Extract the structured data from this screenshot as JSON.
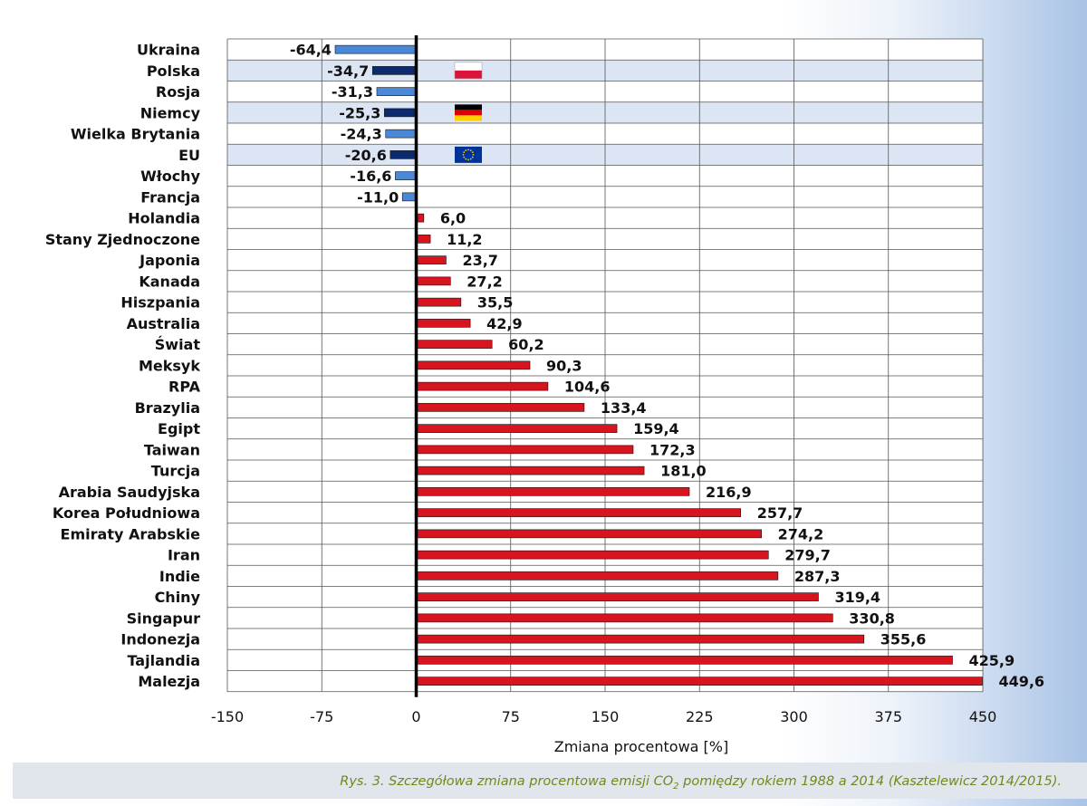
{
  "chart_data": {
    "type": "bar",
    "orientation": "horizontal",
    "categories": [
      "Ukraina",
      "Polska",
      "Rosja",
      "Niemcy",
      "Wielka Brytania",
      "EU",
      "Włochy",
      "Francja",
      "Holandia",
      "Stany Zjednoczone",
      "Japonia",
      "Kanada",
      "Hiszpania",
      "Australia",
      "Świat",
      "Meksyk",
      "RPA",
      "Brazylia",
      "Egipt",
      "Taiwan",
      "Turcja",
      "Arabia Saudyjska",
      "Korea Południowa",
      "Emiraty Arabskie",
      "Iran",
      "Indie",
      "Chiny",
      "Singapur",
      "Indonezja",
      "Tajlandia",
      "Malezja"
    ],
    "values": [
      -64.4,
      -34.7,
      -31.3,
      -25.3,
      -24.3,
      -20.6,
      -16.6,
      -11.0,
      6.0,
      11.2,
      23.7,
      27.2,
      35.5,
      42.9,
      60.2,
      90.3,
      104.6,
      133.4,
      159.4,
      172.3,
      181.0,
      216.9,
      257.7,
      274.2,
      279.7,
      287.3,
      319.4,
      330.8,
      355.6,
      425.9,
      449.6
    ],
    "value_labels": [
      "-64,4",
      "-34,7",
      "-31,3",
      "-25,3",
      "-24,3",
      "-20,6",
      "-16,6",
      "-11,0",
      "6,0",
      "11,2",
      "23,7",
      "27,2",
      "35,5",
      "42,9",
      "60,2",
      "90,3",
      "104,6",
      "133,4",
      "159,4",
      "172,3",
      "181,0",
      "216,9",
      "257,7",
      "274,2",
      "279,7",
      "287,3",
      "319,4",
      "330,8",
      "355,6",
      "425,9",
      "449,6"
    ],
    "highlighted": [
      "Polska",
      "Niemcy",
      "EU"
    ],
    "flags": {
      "Polska": "poland-flag-icon",
      "Niemcy": "germany-flag-icon",
      "EU": "eu-flag-icon"
    },
    "xlabel": "Zmiana procentowa [%]",
    "ylabel": "",
    "xlim": [
      -150,
      450
    ],
    "xticks": [
      -150,
      -75,
      0,
      75,
      150,
      225,
      300,
      375,
      450
    ],
    "xtick_labels": [
      "-150",
      "-75",
      "0",
      "75",
      "150",
      "225",
      "300",
      "375",
      "450"
    ],
    "grid": true,
    "colors": {
      "negative": "#4a88d8",
      "negative_highlight": "#0d2a6e",
      "positive": "#d8141e",
      "highlight_row": "#dce5f3",
      "caption": "#6d8a1a"
    }
  },
  "caption": {
    "before_sub": "Rys. 3. Szczegółowa zmiana procentowa emisji CO",
    "sub": "2",
    "after_sub": " pomiędzy rokiem 1988 a 2014 (Kasztelewicz 2014/2015)."
  }
}
